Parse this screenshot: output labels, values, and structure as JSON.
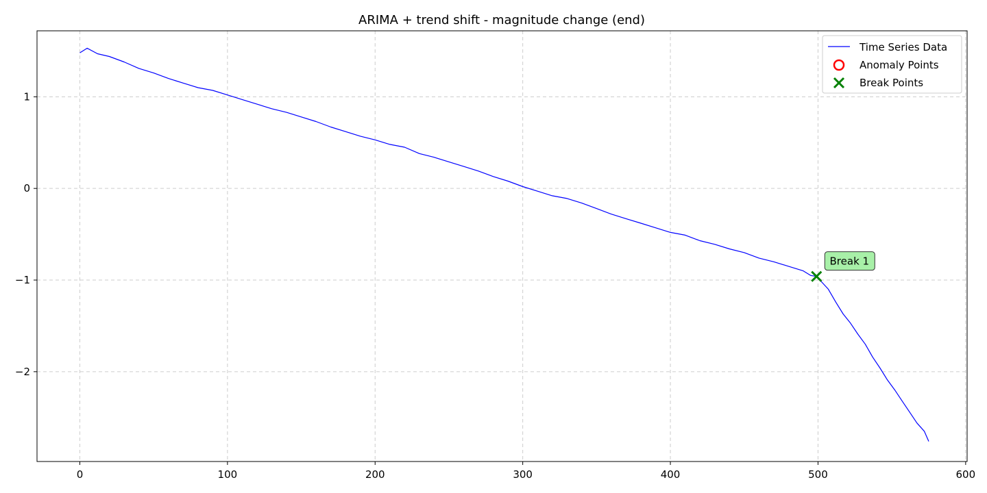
{
  "chart_data": {
    "type": "line",
    "title": "ARIMA + trend shift - magnitude change (end)",
    "xlabel": "",
    "ylabel": "",
    "xlim": [
      -29,
      601
    ],
    "ylim": [
      -2.98,
      1.72
    ],
    "x_ticks": [
      0,
      100,
      200,
      300,
      400,
      500,
      600
    ],
    "y_ticks": [
      1,
      0,
      -1,
      -2
    ],
    "y_tick_labels": [
      "1",
      "0",
      "−1",
      "−2"
    ],
    "grid": true,
    "legend_position": "top-right",
    "legend": [
      {
        "label": "Time Series Data",
        "marker": "line"
      },
      {
        "label": "Anomaly Points",
        "marker": "circle"
      },
      {
        "label": "Break Points",
        "marker": "x"
      }
    ],
    "colors": {
      "series": "#0000ff",
      "anomaly": "#ff0000",
      "break": "#008000",
      "grid": "#cccccc",
      "annotation_fill": "#a8f0a8"
    },
    "series": [
      {
        "name": "Time Series Data",
        "x": [
          0,
          5,
          12,
          20,
          30,
          40,
          50,
          60,
          70,
          80,
          90,
          100,
          110,
          120,
          130,
          140,
          150,
          160,
          170,
          180,
          190,
          200,
          210,
          220,
          230,
          240,
          250,
          260,
          270,
          280,
          290,
          300,
          310,
          320,
          330,
          340,
          350,
          360,
          370,
          380,
          390,
          400,
          410,
          420,
          430,
          440,
          450,
          460,
          470,
          480,
          490,
          495,
          499,
          503,
          507,
          512,
          517,
          522,
          527,
          532,
          537,
          542,
          547,
          552,
          557,
          562,
          567,
          572,
          575
        ],
        "y": [
          1.48,
          1.53,
          1.47,
          1.44,
          1.38,
          1.31,
          1.26,
          1.2,
          1.15,
          1.1,
          1.07,
          1.02,
          0.97,
          0.92,
          0.87,
          0.83,
          0.78,
          0.73,
          0.67,
          0.62,
          0.57,
          0.53,
          0.48,
          0.45,
          0.38,
          0.34,
          0.29,
          0.24,
          0.19,
          0.13,
          0.08,
          0.02,
          -0.03,
          -0.08,
          -0.11,
          -0.16,
          -0.22,
          -0.28,
          -0.33,
          -0.38,
          -0.43,
          -0.48,
          -0.51,
          -0.57,
          -0.61,
          -0.66,
          -0.7,
          -0.76,
          -0.8,
          -0.85,
          -0.9,
          -0.95,
          -0.96,
          -1.03,
          -1.1,
          -1.24,
          -1.37,
          -1.47,
          -1.59,
          -1.7,
          -1.84,
          -1.96,
          -2.09,
          -2.2,
          -2.32,
          -2.44,
          -2.56,
          -2.65,
          -2.76
        ]
      }
    ],
    "anomaly_points": [],
    "break_points": [
      {
        "x": 499,
        "y": -0.96,
        "label": "Break 1"
      }
    ]
  }
}
